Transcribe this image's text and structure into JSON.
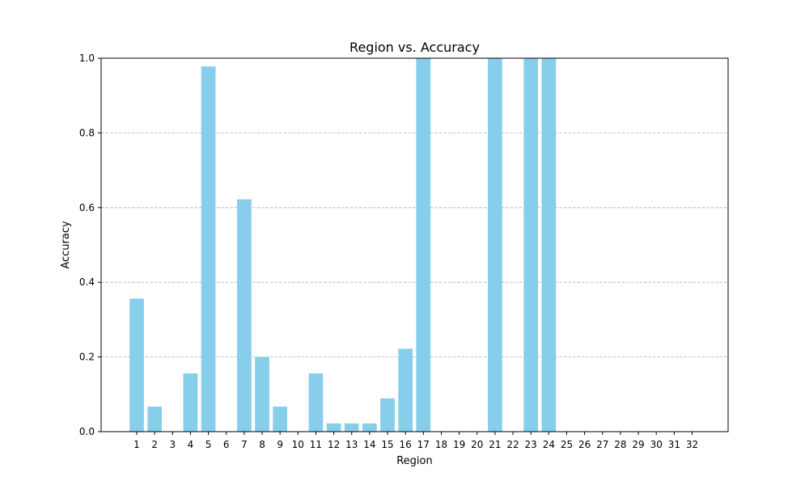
{
  "chart_data": {
    "type": "bar",
    "title": "Region vs. Accuracy",
    "xlabel": "Region",
    "ylabel": "Accuracy",
    "ylim": [
      0,
      1.0
    ],
    "yticks": [
      "0.0",
      "0.2",
      "0.4",
      "0.6",
      "0.8",
      "1.0"
    ],
    "grid": "y-dashed",
    "bar_color": "#87CEEB",
    "categories": [
      "1",
      "2",
      "3",
      "4",
      "5",
      "6",
      "7",
      "8",
      "9",
      "10",
      "11",
      "12",
      "13",
      "14",
      "15",
      "16",
      "17",
      "18",
      "19",
      "20",
      "21",
      "22",
      "23",
      "24",
      "25",
      "26",
      "27",
      "28",
      "29",
      "30",
      "31",
      "32"
    ],
    "values": [
      0.356,
      0.067,
      0.0,
      0.156,
      0.978,
      0.0,
      0.622,
      0.2,
      0.067,
      0.0,
      0.156,
      0.022,
      0.022,
      0.022,
      0.089,
      0.222,
      1.0,
      0.0,
      0.0,
      0.0,
      1.0,
      0.0,
      1.0,
      1.0,
      0.0,
      0.0,
      0.0,
      0.0,
      0.0,
      0.0,
      0.0,
      0.0
    ]
  }
}
